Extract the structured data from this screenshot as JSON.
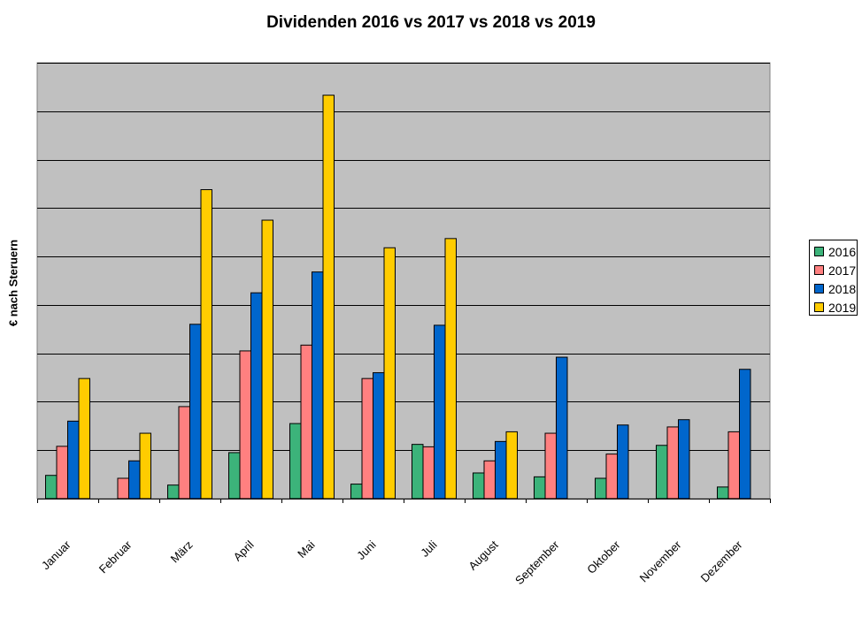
{
  "chart_data": {
    "type": "bar",
    "title": "Dividenden 2016 vs 2017 vs 2018 vs 2019",
    "xlabel": "",
    "ylabel": "€ nach Steruern",
    "ylim": [
      0,
      9
    ],
    "grid": true,
    "legend_position": "right",
    "categories": [
      "Januar",
      "Februar",
      "März",
      "April",
      "Mai",
      "Juni",
      "Juli",
      "August",
      "September",
      "Oktober",
      "November",
      "Dezember"
    ],
    "series": [
      {
        "name": "2016",
        "color": "#3cb37a",
        "values": [
          0.48,
          0,
          0.28,
          0.95,
          1.55,
          0.3,
          1.12,
          0.53,
          0.45,
          0.42,
          1.1,
          0.24
        ]
      },
      {
        "name": "2017",
        "color": "#ff8080",
        "values": [
          1.08,
          0.42,
          1.9,
          3.05,
          3.17,
          2.48,
          1.07,
          0.78,
          1.35,
          0.92,
          1.48,
          1.38
        ]
      },
      {
        "name": "2018",
        "color": "#0066cc",
        "values": [
          1.6,
          0.78,
          3.6,
          4.25,
          4.68,
          2.6,
          3.58,
          1.18,
          2.92,
          1.52,
          1.63,
          2.67
        ]
      },
      {
        "name": "2019",
        "color": "#ffcc00",
        "values": [
          2.48,
          1.35,
          6.38,
          5.75,
          8.33,
          5.18,
          5.37,
          1.38,
          null,
          null,
          null,
          null
        ]
      }
    ]
  }
}
